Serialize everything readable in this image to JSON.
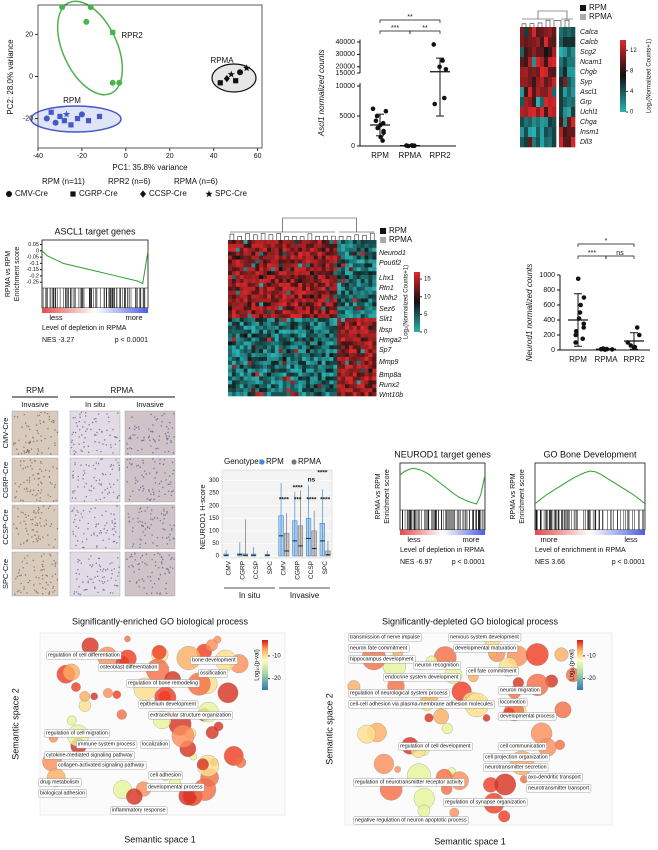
{
  "chart_data": [
    {
      "type": "scatter",
      "xlabel": "PC1: 35.8% variance",
      "ylabel": "PC2: 28.0% variance",
      "xlim": [
        -40,
        62
      ],
      "ylim": [
        -34,
        34
      ],
      "xticks": [
        -40,
        -20,
        0,
        20,
        40,
        60
      ],
      "yticks": [
        -20,
        0,
        20
      ],
      "cre_legend": [
        "CMV-Cre",
        "CGRP-Cre",
        "CCSP-Cre",
        "SPC-Cre"
      ],
      "series": [
        {
          "name": "RPM (n=11)",
          "label": "RPM",
          "color": "#4657c8",
          "x": [
            -36,
            -34,
            -32,
            -30,
            -28,
            -27,
            -25,
            -22,
            -20,
            -17,
            -12
          ],
          "y": [
            -20,
            -17,
            -22,
            -19,
            -21,
            -18,
            -23,
            -20,
            -18,
            -21,
            -19
          ],
          "cre": [
            "CMV-Cre",
            "CGRP-Cre",
            "CMV-Cre",
            "CGRP-Cre",
            "CGRP-Cre",
            "SPC-Cre",
            "CGRP-Cre",
            "CGRP-Cre",
            "CMV-Cre",
            "CGRP-Cre",
            "CGRP-Cre"
          ]
        },
        {
          "name": "RPR2 (n=6)",
          "label": "RPR2",
          "color": "#4bb34a",
          "x": [
            -29,
            -16,
            -6,
            -6,
            -3,
            -18
          ],
          "y": [
            33,
            33,
            21,
            -3,
            -3,
            26
          ],
          "cre": [
            "CMV-Cre",
            "CMV-Cre",
            "CGRP-Cre",
            "CMV-Cre",
            "CMV-Cre",
            "CMV-Cre"
          ]
        },
        {
          "name": "RPMA (n=6)",
          "label": "RPMA",
          "color": "#111111",
          "x": [
            43,
            46,
            48,
            50,
            52,
            55
          ],
          "y": [
            -3,
            -1,
            1,
            -2,
            2,
            4
          ],
          "cre": [
            "CGRP-Cre",
            "CCSP-Cre",
            "SPC-Cre",
            "CGRP-Cre",
            "CMV-Cre",
            "SPC-Cre"
          ]
        }
      ]
    },
    {
      "type": "dot",
      "ylabel": "Ascl1 normalized counts",
      "categories": [
        "RPM",
        "RPMA",
        "RPR2"
      ],
      "values": [
        [
          6200,
          5800,
          5000,
          4200,
          3800,
          3500,
          3000,
          2500,
          2200,
          1500,
          900
        ],
        [
          100,
          50,
          80,
          0,
          60,
          30
        ],
        [
          38000,
          25000,
          20000,
          18000,
          8000,
          7000
        ]
      ],
      "means": [
        3500,
        50,
        16000
      ],
      "sd": [
        1800,
        40,
        11000
      ],
      "ylim": [
        0,
        10500
      ],
      "ylim_upper": [
        15000,
        42000
      ],
      "yticks": [
        0,
        5000,
        10000,
        15000,
        20000,
        30000,
        40000
      ],
      "annotations": [
        "**",
        "***",
        "**"
      ]
    },
    {
      "type": "dot",
      "ylabel": "Neurod1 normalized counts",
      "categories": [
        "RPM",
        "RPMA",
        "RPR2"
      ],
      "values": [
        [
          950,
          700,
          600,
          500,
          420,
          350,
          300,
          250,
          200,
          150,
          100
        ],
        [
          10,
          20,
          5,
          15,
          8,
          12
        ],
        [
          300,
          200,
          100,
          60,
          40,
          30
        ]
      ],
      "means": [
        400,
        12,
        120
      ],
      "sd": [
        350,
        6,
        110
      ],
      "ylim": [
        0,
        1000
      ],
      "yticks": [
        0,
        200,
        400,
        600,
        800,
        1000
      ],
      "annotations": [
        "*",
        "***",
        "ns"
      ]
    },
    {
      "type": "strip",
      "ylabel": "NEUROD1 H-score",
      "legend_title": "Genotype:",
      "categories": [
        "CMV",
        "CGRP",
        "CCSP",
        "SPC",
        "CMV",
        "CGRP",
        "CCSP",
        "SPC"
      ],
      "group_labels": [
        "In situ",
        "Invasive"
      ],
      "ylim": [
        0,
        310
      ],
      "yticks": [
        0,
        50,
        100,
        150,
        200,
        250,
        300
      ],
      "series": [
        {
          "name": "RPM",
          "color": "#3b8fd9",
          "values": [
            3,
            5,
            3,
            3,
            80,
            60,
            70,
            60
          ],
          "q3": [
            8,
            10,
            8,
            6,
            160,
            140,
            150,
            130
          ],
          "max": [
            25,
            55,
            35,
            20,
            290,
            255,
            280,
            265
          ]
        },
        {
          "name": "RPMA",
          "color": "#777777",
          "values": [
            null,
            3,
            null,
            null,
            20,
            40,
            30,
            5
          ],
          "q3": [
            null,
            8,
            null,
            null,
            90,
            120,
            100,
            20
          ],
          "max": [
            null,
            145,
            null,
            null,
            170,
            260,
            180,
            60
          ]
        }
      ],
      "annotations": [
        "****",
        "***",
        "****",
        "****",
        "****",
        "ns",
        "****"
      ]
    },
    {
      "type": "gsea",
      "title": "ASCL1 target genes",
      "ylabel": "RPMA vs RPM",
      "ylabel2": "Enrichment score",
      "values": [
        0,
        -0.04,
        -0.06,
        -0.08,
        -0.1,
        -0.11,
        -0.12,
        -0.13,
        -0.14,
        -0.15,
        -0.16,
        -0.17,
        -0.18,
        -0.19,
        -0.2,
        -0.21,
        -0.22,
        -0.23,
        -0.24,
        -0.26,
        0
      ],
      "ylim": [
        -0.28,
        0.07
      ],
      "yticks": [
        0.05,
        0,
        -0.05,
        -0.1,
        -0.15,
        -0.2,
        -0.25
      ],
      "left_label": "less",
      "right_label": "more",
      "xlabel": "Level of depletion in RPMA",
      "nes": "NES -3.27",
      "p": "p < 0.0001"
    },
    {
      "type": "gsea",
      "title": "NEUROD1 target genes",
      "ylabel": "RPMA vs RPM",
      "ylabel2": "Enrichment score",
      "values": [
        0,
        0.05,
        0.08,
        0.1,
        0.09,
        0.07,
        0.04,
        0,
        -0.05,
        -0.1,
        -0.15,
        -0.2,
        -0.25,
        -0.3,
        -0.34,
        -0.37,
        -0.4,
        -0.42,
        -0.44,
        -0.3,
        0
      ],
      "ylim": [
        -0.5,
        0.15
      ],
      "left_label": "less",
      "right_label": "more",
      "xlabel": "Level of depletion in RPMA",
      "nes": "NES -6.97",
      "p": "p < 0.0001"
    },
    {
      "type": "gsea",
      "title": "GO Bone Development",
      "ylabel": "RPMA vs RPM",
      "ylabel2": "Enrichment score",
      "values": [
        0,
        0.05,
        0.1,
        0.14,
        0.18,
        0.22,
        0.26,
        0.3,
        0.33,
        0.36,
        0.38,
        0.37,
        0.34,
        0.3,
        0.26,
        0.22,
        0.18,
        0.14,
        0.1,
        0.05,
        0
      ],
      "ylim": [
        -0.05,
        0.45
      ],
      "left_label": "more",
      "right_label": "less",
      "xlabel": "Level of enrichment in RPMA",
      "nes": "NES 3.66",
      "p": "p < 0.0001"
    }
  ],
  "heatmaps": [
    {
      "legend": [
        "RPM",
        "RPMA"
      ],
      "genes": [
        "Calca",
        "Calcb",
        "Scg2",
        "Ncam1",
        "Chgb",
        "Syp",
        "Ascl1",
        "Grp",
        "Uchl1",
        "Chga",
        "Insm1",
        "Dll3"
      ],
      "colorbar_label": "Log₂(Normalized Counts+1)",
      "colorbar_lim": [
        0,
        14
      ],
      "colorbar_ticks": [
        12,
        8,
        4,
        0
      ]
    },
    {
      "legend": [
        "RPM",
        "RPMA"
      ],
      "genes": [
        "Neurod1",
        "Pou6f2",
        "Lhx1",
        "Rtn1",
        "Nhlh2",
        "Sez6",
        "Slit1",
        "Ibsp",
        "Hmga2",
        "Sp7",
        "Mmp9",
        "Bmp8a",
        "Runx2",
        "Wnt10b"
      ],
      "colorbar_label": "Log₂(Normalized Counts+1)",
      "colorbar_lim": [
        0,
        17
      ],
      "colorbar_ticks": [
        15,
        10,
        5,
        0
      ]
    }
  ],
  "micrographs": {
    "groups": [
      "RPM",
      "RPMA"
    ],
    "columns": [
      "Invasive",
      "In situ",
      "Invasive"
    ],
    "rows": [
      "CMV-Cre",
      "CGRP-Cre",
      "CCSP-Cre",
      "SPC-Cre"
    ]
  },
  "go_maps": [
    {
      "title": "Significantly-enriched GO biological process",
      "xlabel": "Semantic space 1",
      "ylabel": "Semantic space 2",
      "colorbar_label": "Log₁₀(p-val)",
      "colorbar_lim": [
        -25,
        -3
      ],
      "colorbar_ticks": [
        -10,
        -20
      ],
      "terms": [
        "regulation of cell differentiation",
        "osteoblast differentiation",
        "bone development",
        "ossification",
        "regulation of bone remodeling",
        "epithelium development",
        "extracellular structure organization",
        "regulation of cell migration",
        "immune system process",
        "cytokine-mediated signaling pathway",
        "collagen-activated signaling pathway",
        "localization",
        "cell adhesion",
        "developmental process",
        "drug metabolism",
        "biological adhesion",
        "inflammatory response"
      ]
    },
    {
      "title": "Significantly-depleted GO biological process",
      "xlabel": "Semantic space 1",
      "ylabel": "Semantic space 2",
      "colorbar_label": "Log₁₀(p-val)",
      "colorbar_lim": [
        -25,
        -3
      ],
      "colorbar_ticks": [
        -10,
        -20
      ],
      "terms": [
        "transmission of nerve impulse",
        "nervous system development",
        "neuron fate commitment",
        "developmental maturation",
        "hippocampus development",
        "neuron recognition",
        "cell fate commitment",
        "endocrine system development",
        "neuron migration",
        "regulation of neurological system process",
        "locomotion",
        "cell-cell adhesion via plasma-membrane adhesion molecules",
        "developmental process",
        "regulation of cell development",
        "cell communication",
        "cell projection organization",
        "neurotransmitter secretion",
        "regulation of neurotransmitter receptor activity",
        "axo-dendritic transport",
        "neurotransmitter transport",
        "regulation of synapse organization",
        "negative regulation of neuron apoptotic process"
      ]
    }
  ]
}
